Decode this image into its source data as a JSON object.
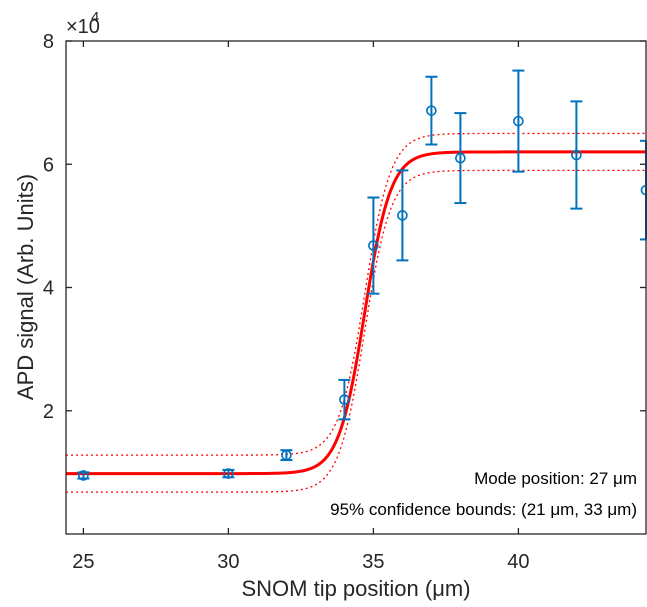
{
  "chart_data": {
    "type": "scatter",
    "xlabel": "SNOM tip position (μm)",
    "ylabel": "APD signal (Arb. Units)",
    "xlim": [
      24.4,
      44.4
    ],
    "ylim": [
      0,
      80000
    ],
    "xticks": [
      25,
      30,
      35,
      40
    ],
    "xtick_labels": [
      "25",
      "30",
      "35",
      "40"
    ],
    "yticks": [
      20000,
      40000,
      60000,
      80000
    ],
    "ytick_labels": [
      "2",
      "4",
      "6",
      "8"
    ],
    "y_exponent": {
      "base": "×10",
      "power": "4"
    },
    "grid": false,
    "points": {
      "color": "#0072BD",
      "x": [
        25,
        30,
        32,
        34,
        35,
        36,
        37,
        38,
        40,
        42,
        44.4
      ],
      "y": [
        9500,
        9800,
        12800,
        21800,
        46800,
        51700,
        68700,
        61000,
        67000,
        61500,
        55800
      ],
      "err": [
        500,
        600,
        800,
        3200,
        7800,
        7300,
        5500,
        7300,
        8200,
        8700,
        8000
      ]
    },
    "fit": {
      "color": "#FF0000",
      "lower": 9800,
      "upper": 62000,
      "center": 34.7,
      "width": 0.45
    },
    "confidence_band": {
      "color": "#FF0000",
      "offset": 3000
    },
    "annotations": [
      "Mode position: 27 μm",
      "95% confidence bounds: (21 μm, 33 μm)"
    ]
  }
}
